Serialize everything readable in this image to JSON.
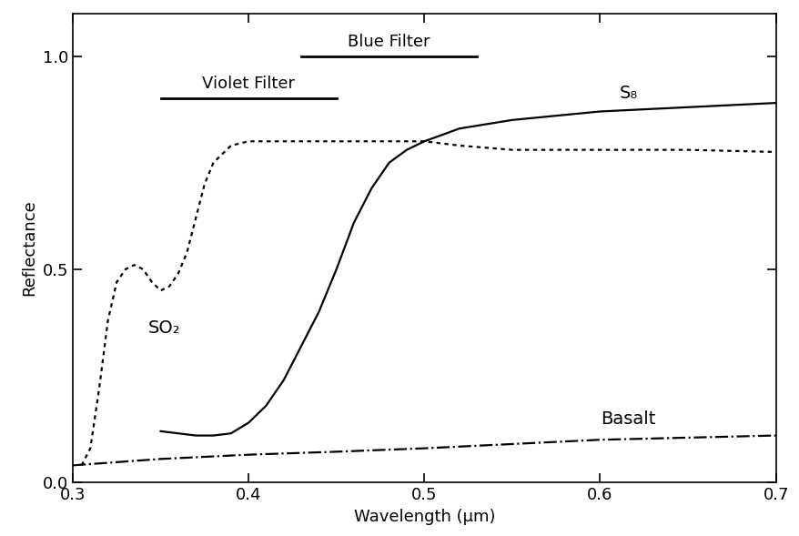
{
  "chart_data": {
    "type": "line",
    "x_label": "Wavelength (μm)",
    "y_label": "Reflectance",
    "xlim": [
      0.3,
      0.7
    ],
    "xticks": [
      0.3,
      0.4,
      0.5,
      0.6,
      0.7
    ],
    "ylim": [
      0,
      1.1
    ],
    "yticks": [
      {
        "value": 0,
        "label": "0.0"
      },
      {
        "value": 0.5,
        "label": "0.5"
      },
      {
        "value": 1,
        "label": "1.0"
      }
    ],
    "grid": false,
    "series": [
      {
        "name": "SO₂",
        "color": "#000000",
        "line_style": "dotted",
        "x": [
          0.305,
          0.31,
          0.315,
          0.32,
          0.325,
          0.33,
          0.335,
          0.34,
          0.345,
          0.35,
          0.355,
          0.36,
          0.365,
          0.37,
          0.375,
          0.38,
          0.39,
          0.4,
          0.45,
          0.5,
          0.52,
          0.55,
          0.6,
          0.65,
          0.7
        ],
        "values": [
          0.04,
          0.08,
          0.22,
          0.38,
          0.47,
          0.5,
          0.51,
          0.5,
          0.47,
          0.45,
          0.46,
          0.49,
          0.54,
          0.62,
          0.7,
          0.75,
          0.79,
          0.8,
          0.8,
          0.8,
          0.79,
          0.78,
          0.78,
          0.78,
          0.775
        ]
      },
      {
        "name": "S₈",
        "color": "#000000",
        "line_style": "solid",
        "x": [
          0.35,
          0.36,
          0.37,
          0.38,
          0.39,
          0.4,
          0.41,
          0.42,
          0.43,
          0.44,
          0.45,
          0.46,
          0.47,
          0.48,
          0.49,
          0.5,
          0.52,
          0.55,
          0.6,
          0.65,
          0.7
        ],
        "values": [
          0.12,
          0.115,
          0.11,
          0.11,
          0.115,
          0.14,
          0.18,
          0.24,
          0.32,
          0.4,
          0.5,
          0.61,
          0.69,
          0.75,
          0.78,
          0.8,
          0.83,
          0.85,
          0.87,
          0.88,
          0.89
        ]
      },
      {
        "name": "Basalt",
        "color": "#000000",
        "line_style": "dashdot",
        "x": [
          0.3,
          0.35,
          0.4,
          0.45,
          0.5,
          0.55,
          0.6,
          0.65,
          0.7
        ],
        "values": [
          0.04,
          0.055,
          0.065,
          0.072,
          0.08,
          0.09,
          0.1,
          0.105,
          0.11
        ]
      }
    ],
    "bands": [
      {
        "label": "Violet Filter",
        "x": [
          0.35,
          0.45
        ],
        "y": 0.9
      },
      {
        "label": "Blue Filter",
        "x": [
          0.43,
          0.53
        ],
        "y": 1.0
      }
    ]
  }
}
